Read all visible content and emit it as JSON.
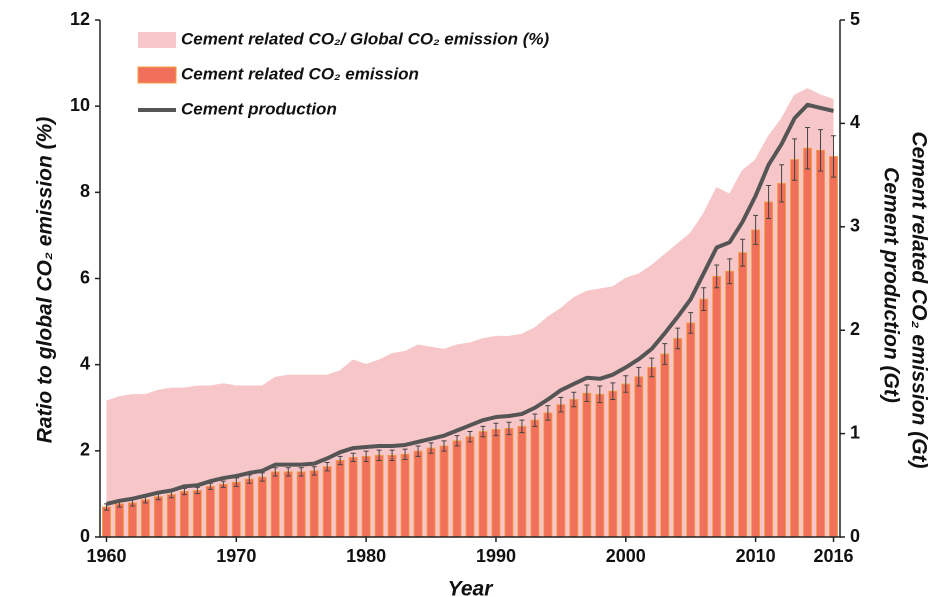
{
  "chart_data": {
    "type": "bar",
    "x": [
      1960,
      1961,
      1962,
      1963,
      1964,
      1965,
      1966,
      1967,
      1968,
      1969,
      1970,
      1971,
      1972,
      1973,
      1974,
      1975,
      1976,
      1977,
      1978,
      1979,
      1980,
      1981,
      1982,
      1983,
      1984,
      1985,
      1986,
      1987,
      1988,
      1989,
      1990,
      1991,
      1992,
      1993,
      1994,
      1995,
      1996,
      1997,
      1998,
      1999,
      2000,
      2001,
      2002,
      2003,
      2004,
      2005,
      2006,
      2007,
      2008,
      2009,
      2010,
      2011,
      2012,
      2013,
      2014,
      2015,
      2016
    ],
    "xlim": [
      1959.5,
      2016.5
    ],
    "xticks": [
      1960,
      1970,
      1980,
      1990,
      2000,
      2010,
      2016
    ],
    "xlabel": "Year",
    "ylabel": "Ratio to global CO₂ emission (%)",
    "y2label": [
      "Cement related CO₂ emission (Gt)",
      "Cement production (Gt)"
    ],
    "ylim": [
      0,
      12
    ],
    "yticks": [
      0,
      2,
      4,
      6,
      8,
      10,
      12
    ],
    "y2lim": [
      0,
      5
    ],
    "y2ticks": [
      0,
      1,
      2,
      3,
      4,
      5
    ],
    "legend": "top-left",
    "series": [
      {
        "name": "Cement related CO₂/ Global CO₂ emission (%)",
        "type": "area",
        "color": "#f7c6c8",
        "values": [
          3.15,
          3.25,
          3.3,
          3.3,
          3.4,
          3.45,
          3.45,
          3.5,
          3.5,
          3.55,
          3.5,
          3.5,
          3.5,
          3.7,
          3.75,
          3.75,
          3.75,
          3.75,
          3.85,
          4.1,
          4.0,
          4.1,
          4.25,
          4.3,
          4.45,
          4.4,
          4.35,
          4.45,
          4.5,
          4.6,
          4.65,
          4.65,
          4.7,
          4.85,
          5.1,
          5.3,
          5.55,
          5.7,
          5.75,
          5.8,
          6.0,
          6.1,
          6.3,
          6.55,
          6.8,
          7.05,
          7.5,
          8.1,
          7.95,
          8.5,
          8.75,
          9.3,
          9.7,
          10.25,
          10.4,
          10.25,
          10.15
        ]
      },
      {
        "name": "Cement related CO₂ emission",
        "type": "bar",
        "axis": "y2",
        "color": "#f0705c",
        "values": [
          0.29,
          0.32,
          0.33,
          0.36,
          0.39,
          0.41,
          0.44,
          0.45,
          0.49,
          0.51,
          0.53,
          0.56,
          0.58,
          0.63,
          0.63,
          0.63,
          0.64,
          0.68,
          0.74,
          0.77,
          0.78,
          0.79,
          0.79,
          0.8,
          0.83,
          0.86,
          0.88,
          0.93,
          0.97,
          1.02,
          1.04,
          1.05,
          1.07,
          1.13,
          1.2,
          1.28,
          1.33,
          1.39,
          1.38,
          1.41,
          1.48,
          1.55,
          1.64,
          1.77,
          1.92,
          2.07,
          2.3,
          2.52,
          2.57,
          2.75,
          2.97,
          3.24,
          3.42,
          3.65,
          3.76,
          3.74,
          3.68
        ],
        "errors": [
          0.03,
          0.03,
          0.03,
          0.03,
          0.03,
          0.03,
          0.03,
          0.03,
          0.03,
          0.03,
          0.04,
          0.04,
          0.04,
          0.04,
          0.04,
          0.04,
          0.04,
          0.04,
          0.04,
          0.04,
          0.05,
          0.05,
          0.05,
          0.05,
          0.05,
          0.05,
          0.05,
          0.05,
          0.05,
          0.05,
          0.06,
          0.06,
          0.06,
          0.06,
          0.07,
          0.07,
          0.07,
          0.08,
          0.08,
          0.08,
          0.08,
          0.09,
          0.09,
          0.1,
          0.1,
          0.1,
          0.11,
          0.11,
          0.12,
          0.13,
          0.14,
          0.16,
          0.18,
          0.2,
          0.2,
          0.2,
          0.2
        ]
      },
      {
        "name": "Cement production",
        "type": "line",
        "axis": "y2",
        "color": "#555555",
        "values": [
          0.32,
          0.35,
          0.37,
          0.4,
          0.43,
          0.45,
          0.49,
          0.5,
          0.54,
          0.57,
          0.59,
          0.62,
          0.64,
          0.7,
          0.7,
          0.7,
          0.71,
          0.76,
          0.82,
          0.86,
          0.87,
          0.88,
          0.88,
          0.89,
          0.92,
          0.95,
          0.98,
          1.03,
          1.08,
          1.13,
          1.16,
          1.17,
          1.19,
          1.25,
          1.33,
          1.42,
          1.48,
          1.54,
          1.53,
          1.57,
          1.64,
          1.72,
          1.82,
          1.97,
          2.13,
          2.3,
          2.55,
          2.8,
          2.85,
          3.05,
          3.3,
          3.6,
          3.8,
          4.05,
          4.18,
          4.15,
          4.12
        ]
      }
    ]
  }
}
